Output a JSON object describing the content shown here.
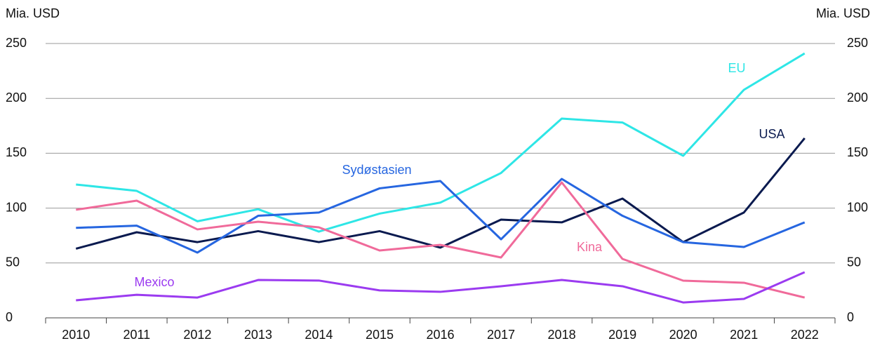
{
  "chart_data": {
    "type": "line",
    "ylabel": "Mia. USD",
    "y2label": "Mia. USD",
    "categories": [
      "2010",
      "2011",
      "2012",
      "2013",
      "2014",
      "2015",
      "2016",
      "2017",
      "2018",
      "2019",
      "2020",
      "2021",
      "2022"
    ],
    "series": [
      {
        "name": "EU",
        "color": "#2ee6e6",
        "values": [
          121.5,
          115.7,
          88,
          99,
          78.6,
          95,
          105,
          132,
          181.6,
          178,
          147.7,
          207.8,
          241
        ]
      },
      {
        "name": "USA",
        "color": "#0a1a4f",
        "values": [
          63,
          78,
          69,
          79,
          69,
          79,
          64,
          89.5,
          87,
          108.7,
          69,
          96,
          163.7
        ]
      },
      {
        "name": "Sydøstasien",
        "color": "#2666e0",
        "values": [
          82,
          84,
          59.5,
          93,
          96,
          118,
          124.7,
          71.6,
          126.6,
          93,
          69,
          64.6,
          87
        ]
      },
      {
        "name": "Kina",
        "color": "#f06a9a",
        "values": [
          98.5,
          106.8,
          80.6,
          87.6,
          82.5,
          61.4,
          66.5,
          55,
          123.4,
          53.7,
          33.9,
          32,
          18.5
        ]
      },
      {
        "name": "Mexico",
        "color": "#9b3bf0",
        "values": [
          16,
          21,
          18.5,
          34.5,
          34,
          25,
          23.7,
          28.8,
          34.5,
          28.8,
          14,
          17.3,
          41.6
        ]
      }
    ],
    "ylim": [
      0,
      250
    ],
    "yticks": [
      0,
      50,
      100,
      150,
      200,
      250
    ],
    "y2lim": [
      0,
      250
    ],
    "y2ticks": [
      0,
      50,
      100,
      150,
      200,
      250
    ],
    "grid": true
  }
}
